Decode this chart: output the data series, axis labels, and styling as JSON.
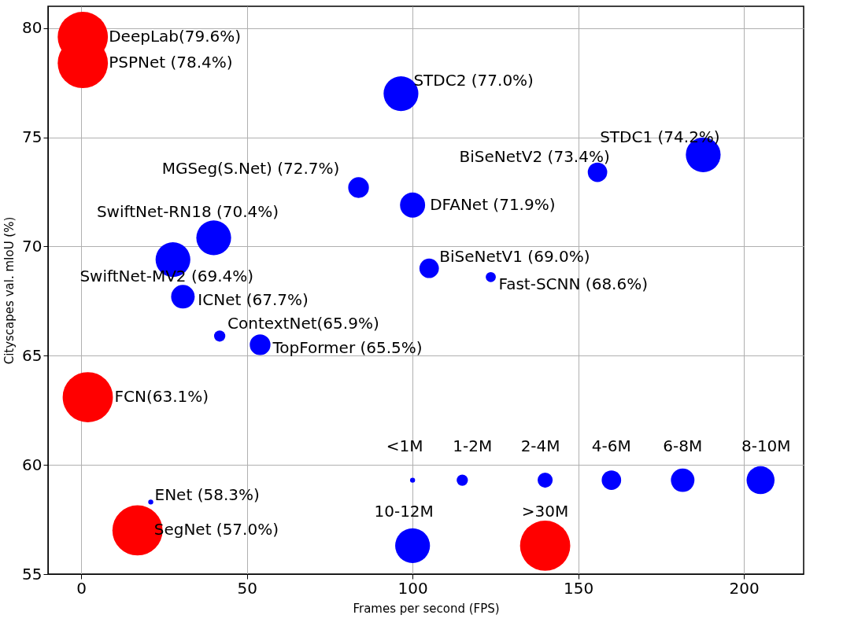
{
  "chart_data": {
    "type": "bubble",
    "xlabel": "Frames per second (FPS)",
    "ylabel": "Cityscapes val. mIoU (%)",
    "xlim": [
      -10,
      218
    ],
    "ylim": [
      55,
      81
    ],
    "xticks": [
      0,
      50,
      100,
      150,
      200
    ],
    "yticks": [
      55,
      60,
      65,
      70,
      75,
      80
    ],
    "grid": true,
    "series": [
      {
        "x": [
          0.5,
          0.5,
          96.5,
          187.7,
          155.8,
          83.7,
          100,
          40,
          27.7,
          105,
          123.6,
          30.7,
          41.8,
          54,
          2,
          21,
          17
        ],
        "values": [
          79.6,
          78.4,
          77.0,
          74.2,
          73.4,
          72.7,
          71.9,
          70.4,
          69.4,
          69.0,
          68.6,
          67.7,
          65.9,
          65.5,
          63.1,
          58.3,
          57.0
        ],
        "sizes": [
          1,
          1,
          0.48,
          0.48,
          0.15,
          0.17,
          0.25,
          0.48,
          0.48,
          0.15,
          0.04,
          0.22,
          0.05,
          0.17,
          1,
          0.01,
          1
        ],
        "colors": [
          "#ff0000",
          "#ff0000",
          "#0000ff",
          "#0000ff",
          "#0000ff",
          "#0000ff",
          "#0000ff",
          "#0000ff",
          "#0000ff",
          "#0000ff",
          "#0000ff",
          "#0000ff",
          "#0000ff",
          "#0000ff",
          "#ff0000",
          "#0000ff",
          "#ff0000"
        ],
        "value_labels": [
          "DeepLab(79.6%)",
          "PSPNet (78.4%)",
          "STDC2 (77.0%)",
          "STDC1 (74.2%)",
          "BiSeNetV2 (73.4%)",
          "MGSeg(S.Net) (72.7%)",
          "DFANet (71.9%)",
          "SwiftNet-RN18 (70.4%)",
          "SwiftNet-MV2 (69.4%)",
          "BiSeNetV1 (69.0%)",
          "Fast-SCNN (68.6%)",
          "ICNet (67.7%)",
          "ContextNet(65.9%)",
          "TopFormer (65.5%)",
          "FCN(63.1%)",
          "ENet (58.3%)",
          "SegNet (57.0%)"
        ]
      },
      {
        "x": [
          100,
          115,
          140,
          160,
          181.5,
          205,
          100,
          140
        ],
        "values": [
          59.3,
          59.3,
          59.3,
          59.3,
          59.3,
          59.3,
          56.3,
          56.3
        ],
        "sizes": [
          0.01,
          0.05,
          0.09,
          0.15,
          0.22,
          0.31,
          0.48,
          1
        ],
        "colors": [
          "#0000ff",
          "#0000ff",
          "#0000ff",
          "#0000ff",
          "#0000ff",
          "#0000ff",
          "#0000ff",
          "#ff0000"
        ],
        "value_labels": [
          "<1M",
          "1-2M",
          "2-4M",
          "4-6M",
          "6-8M",
          "8-10M",
          "10-12M",
          ">30M"
        ]
      }
    ]
  }
}
